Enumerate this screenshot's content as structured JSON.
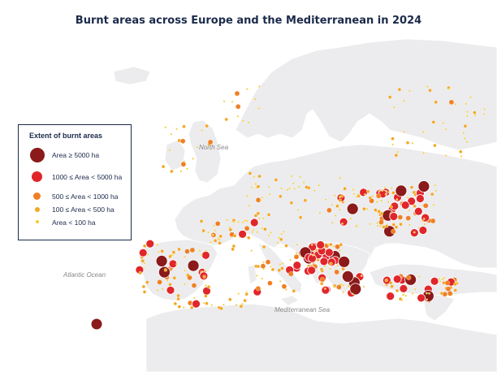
{
  "title": "Burnt areas across Europe and the Mediterranean in 2024",
  "sea_labels": {
    "north_sea": "North Sea",
    "atlantic": "Atlantic Ocean",
    "mediterranean": "Mediterranean Sea"
  },
  "legend": {
    "title": "Extent of burnt areas",
    "classes": [
      {
        "label": "Area ≥ 5000 ha",
        "color": "#8b1a1a"
      },
      {
        "label": "1000 ≤ Area < 5000 ha",
        "color": "#e0262b"
      },
      {
        "label": "500 ≤ Area < 1000 ha",
        "color": "#f07f24"
      },
      {
        "label": "100 ≤ Area < 500 ha",
        "color": "#f4a622"
      },
      {
        "label": "Area < 100 ha",
        "color": "#f3cc2f"
      }
    ]
  },
  "colors": {
    "land": "#ececee",
    "sea": "#ffffff",
    "frame": "#1b2a4a"
  }
}
